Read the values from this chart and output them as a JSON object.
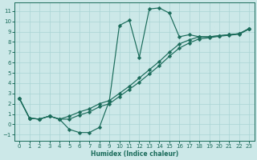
{
  "xlabel": "Humidex (Indice chaleur)",
  "xlim": [
    -0.5,
    23.5
  ],
  "ylim": [
    -1.6,
    11.8
  ],
  "xticks": [
    0,
    1,
    2,
    3,
    4,
    5,
    6,
    7,
    8,
    9,
    10,
    11,
    12,
    13,
    14,
    15,
    16,
    17,
    18,
    19,
    20,
    21,
    22,
    23
  ],
  "yticks": [
    -1,
    0,
    1,
    2,
    3,
    4,
    5,
    6,
    7,
    8,
    9,
    10,
    11
  ],
  "bg_color": "#cce8e8",
  "grid_color": "#aad4d4",
  "line_color": "#1a6b5a",
  "curve_spike_x": [
    0,
    1,
    2,
    3,
    4,
    5,
    6,
    7,
    8,
    9,
    10,
    11,
    12,
    13,
    14,
    15,
    16,
    17,
    18,
    19,
    20,
    21,
    22,
    23
  ],
  "curve_spike_y": [
    2.5,
    0.6,
    0.5,
    0.8,
    0.5,
    -0.5,
    -0.8,
    -0.8,
    -0.3,
    2.3,
    9.6,
    10.1,
    6.5,
    11.2,
    11.3,
    10.8,
    8.5,
    8.7,
    8.5,
    8.5,
    8.6,
    8.7,
    8.8,
    9.3
  ],
  "curve_upper_x": [
    0,
    1,
    2,
    3,
    4,
    5,
    6,
    7,
    8,
    9,
    10,
    11,
    12,
    13,
    14,
    15,
    16,
    17,
    18,
    19,
    20,
    21,
    22,
    23
  ],
  "curve_upper_y": [
    2.5,
    0.6,
    0.5,
    0.8,
    0.5,
    0.8,
    1.2,
    1.5,
    2.0,
    2.3,
    3.0,
    3.7,
    4.5,
    5.3,
    6.1,
    7.0,
    7.8,
    8.2,
    8.5,
    8.5,
    8.6,
    8.7,
    8.8,
    9.3
  ],
  "curve_lower_x": [
    0,
    1,
    2,
    3,
    4,
    5,
    6,
    7,
    8,
    9,
    10,
    11,
    12,
    13,
    14,
    15,
    16,
    17,
    18,
    19,
    20,
    21,
    22,
    23
  ],
  "curve_lower_y": [
    2.5,
    0.6,
    0.5,
    0.8,
    0.5,
    0.5,
    0.9,
    1.2,
    1.7,
    2.0,
    2.7,
    3.4,
    4.1,
    4.9,
    5.7,
    6.6,
    7.4,
    7.9,
    8.3,
    8.4,
    8.55,
    8.65,
    8.75,
    9.25
  ],
  "ms": 2.5,
  "lw": 0.85
}
